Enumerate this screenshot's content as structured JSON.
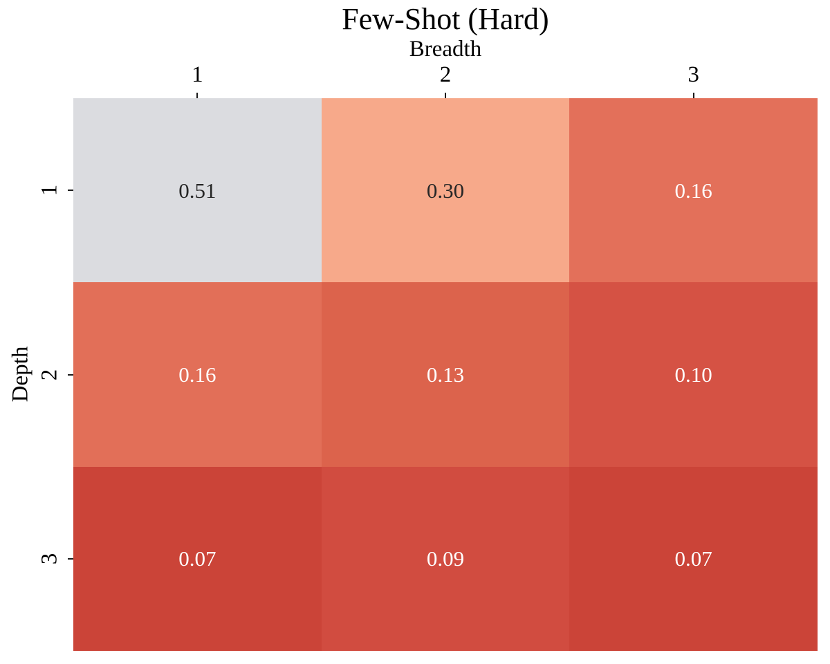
{
  "chart_data": {
    "type": "heatmap",
    "title": "Few-Shot (Hard)",
    "xlabel": "Breadth",
    "ylabel": "Depth",
    "x_tick_labels": [
      "1",
      "2",
      "3"
    ],
    "y_tick_labels": [
      "1",
      "2",
      "3"
    ],
    "values": [
      [
        0.51,
        0.3,
        0.16
      ],
      [
        0.16,
        0.13,
        0.1
      ],
      [
        0.07,
        0.09,
        0.07
      ]
    ],
    "cell_labels": [
      [
        "0.51",
        "0.30",
        "0.16"
      ],
      [
        "0.16",
        "0.13",
        "0.10"
      ],
      [
        "0.07",
        "0.09",
        "0.07"
      ]
    ],
    "cell_colors": [
      [
        "#dbdce0",
        "#f7a98a",
        "#e3705a"
      ],
      [
        "#e26f58",
        "#dc634c",
        "#d55244"
      ],
      [
        "#cb4438",
        "#d14c40",
        "#cb4438"
      ]
    ],
    "cell_text_colors": [
      [
        "#262626",
        "#262626",
        "#ffffff"
      ],
      [
        "#ffffff",
        "#ffffff",
        "#ffffff"
      ],
      [
        "#ffffff",
        "#ffffff",
        "#ffffff"
      ]
    ],
    "legend_position": "none",
    "grid_on": false,
    "background_color": "#ffffff",
    "tick_color": "#1a1a1a"
  }
}
